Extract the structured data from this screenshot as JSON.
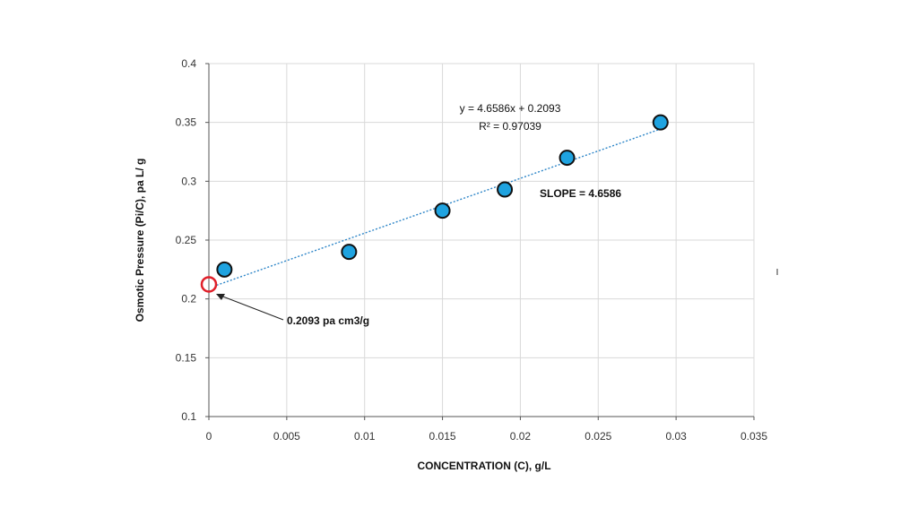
{
  "chart_data": {
    "type": "scatter",
    "title": "",
    "xlabel": "CONCENTRATION (C), g/L",
    "ylabel": "Osmotic Pressure  (Pi/C), pa L/ g",
    "xlim": [
      0,
      0.035
    ],
    "ylim": [
      0.1,
      0.4
    ],
    "x_ticks": [
      0,
      0.005,
      0.01,
      0.015,
      0.02,
      0.025,
      0.03,
      0.035
    ],
    "x_tick_labels": [
      "0",
      "0.005",
      "0.01",
      "0.015",
      "0.02",
      "0.025",
      "0.03",
      "0.035"
    ],
    "y_ticks": [
      0.1,
      0.15,
      0.2,
      0.25,
      0.3,
      0.35,
      0.4
    ],
    "y_tick_labels": [
      "0.1",
      "0.15",
      "0.2",
      "0.25",
      "0.3",
      "0.35",
      "0.4"
    ],
    "grid": true,
    "legend": "none",
    "series": [
      {
        "x": [
          0.001,
          0.009,
          0.015,
          0.019,
          0.023,
          0.029
        ],
        "y": [
          0.225,
          0.24,
          0.275,
          0.293,
          0.32,
          0.35
        ],
        "color": "#1fa3e0"
      }
    ],
    "trendline": {
      "slope": 4.6586,
      "intercept": 0.2093,
      "x_range": [
        0.0005,
        0.029
      ],
      "color": "#2e86c8"
    },
    "annotations": {
      "equation": "y = 4.6586x + 0.2093",
      "r_squared": "R² = 0.97039",
      "slope_label": "SLOPE = 4.6586",
      "intercept_label": "0.2093 pa cm3/g",
      "intercept_marker": {
        "x": 0,
        "y": 0.2093,
        "color": "#e0202a"
      }
    }
  }
}
